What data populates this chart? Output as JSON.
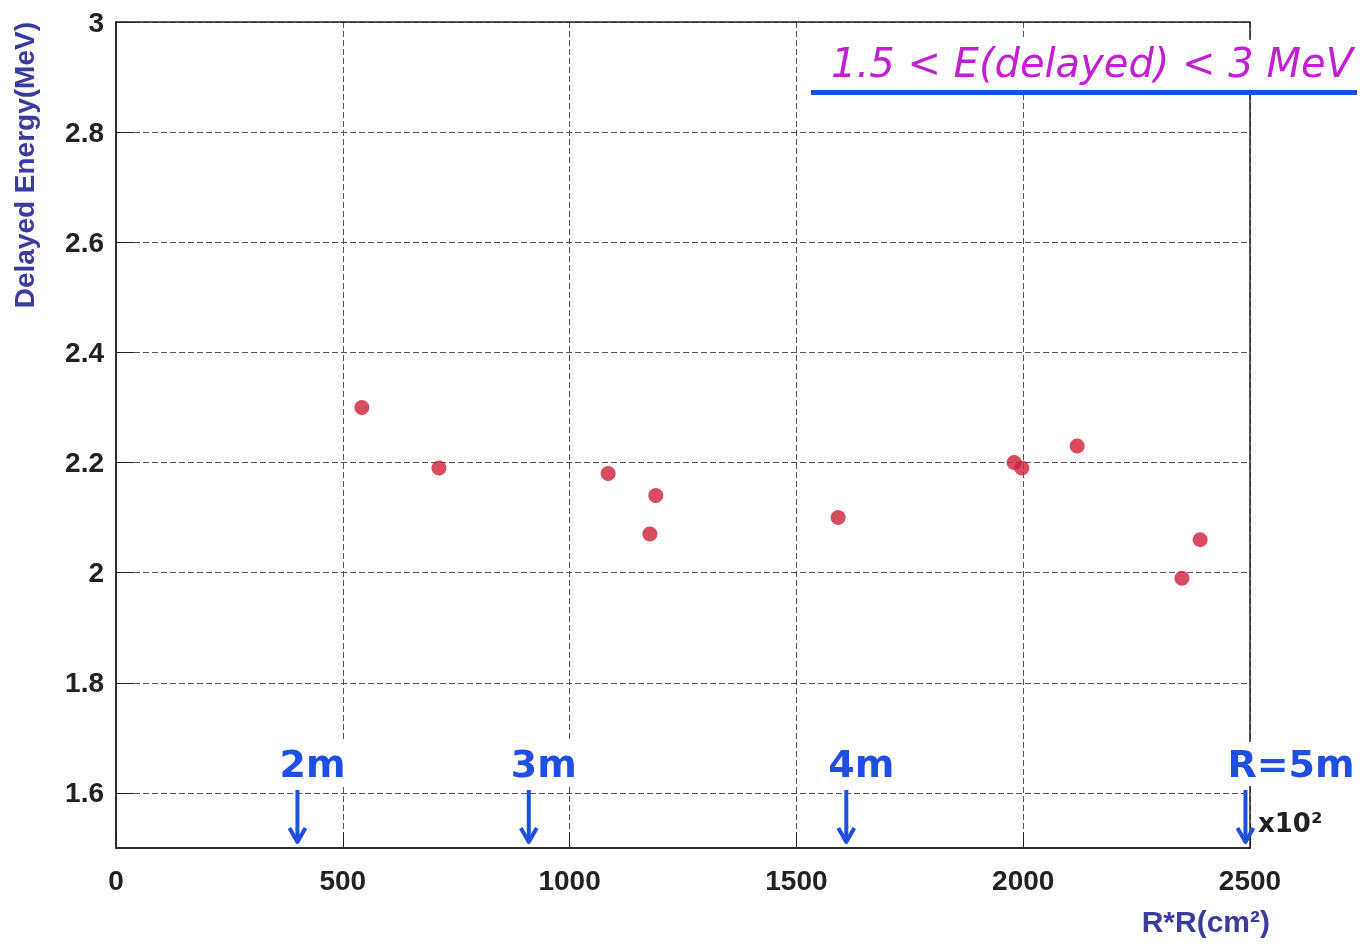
{
  "chart_data": {
    "type": "scatter",
    "xlabel": "R*R(cm²)",
    "ylabel": "Delayed Energy(MeV)",
    "x": [
      542,
      712,
      1085,
      1177,
      1190,
      1592,
      1980,
      1997,
      2119,
      2350,
      2390
    ],
    "values": [
      2.3,
      2.19,
      2.18,
      2.07,
      2.14,
      2.1,
      2.2,
      2.19,
      2.23,
      1.99,
      2.06
    ],
    "color": "#cc1f3a",
    "marker": "circle",
    "xlim": [
      0,
      2500
    ],
    "xticks": [
      0,
      500,
      1000,
      1500,
      2000,
      2500
    ],
    "ylim": [
      1.5,
      3
    ],
    "yticks": [
      1.6,
      1.8,
      2,
      2.2,
      2.4,
      2.6,
      2.8,
      3
    ],
    "grid": true,
    "annotations": [
      "1.5 < E(delayed) < 3 MeV",
      "x10²",
      "2m",
      "3m",
      "4m",
      "R=5m"
    ]
  }
}
